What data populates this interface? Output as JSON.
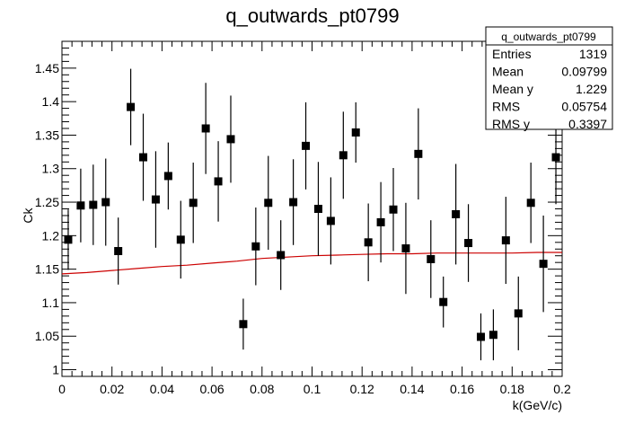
{
  "chart_data": {
    "type": "scatter",
    "title": "q_outwards_pt0799",
    "xlabel": "k(GeV/c)",
    "ylabel": "Ck",
    "xlim": [
      0,
      0.2
    ],
    "ylim": [
      0.99,
      1.49
    ],
    "x_ticks": [
      "0",
      "0.02",
      "0.04",
      "0.06",
      "0.08",
      "0.1",
      "0.12",
      "0.14",
      "0.16",
      "0.18",
      "0.2"
    ],
    "y_ticks": [
      "1",
      "1.05",
      "1.1",
      "1.15",
      "1.2",
      "1.25",
      "1.3",
      "1.35",
      "1.4",
      "1.45"
    ],
    "grid": false,
    "colors": {
      "points": "#000000",
      "fit": "#cc0000",
      "frame": "#000000"
    },
    "series": [
      {
        "type": "errorbar",
        "x": [
          0.0025,
          0.0075,
          0.0125,
          0.0175,
          0.0225,
          0.0275,
          0.0325,
          0.0375,
          0.0425,
          0.0475,
          0.0525,
          0.0575,
          0.0625,
          0.0675,
          0.0725,
          0.0775,
          0.0825,
          0.0875,
          0.0925,
          0.0975,
          0.1025,
          0.1075,
          0.1125,
          0.1175,
          0.1225,
          0.1275,
          0.1325,
          0.1375,
          0.1425,
          0.1475,
          0.1525,
          0.1575,
          0.1625,
          0.1675,
          0.1725,
          0.1775,
          0.1825,
          0.1875,
          0.1925,
          0.1975
        ],
        "y": [
          1.194,
          1.245,
          1.246,
          1.25,
          1.177,
          1.392,
          1.317,
          1.254,
          1.289,
          1.194,
          1.249,
          1.36,
          1.281,
          1.344,
          1.068,
          1.184,
          1.249,
          1.171,
          1.25,
          1.334,
          1.24,
          1.222,
          1.32,
          1.354,
          1.19,
          1.22,
          1.239,
          1.181,
          1.322,
          1.165,
          1.101,
          1.232,
          1.189,
          1.049,
          1.052,
          1.193,
          1.084,
          1.249,
          1.158,
          1.317
        ],
        "yerr": [
          0.045,
          0.055,
          0.06,
          0.065,
          0.05,
          0.057,
          0.065,
          0.072,
          0.05,
          0.058,
          0.06,
          0.068,
          0.06,
          0.065,
          0.038,
          0.058,
          0.07,
          0.052,
          0.064,
          0.065,
          0.07,
          0.065,
          0.065,
          0.045,
          0.058,
          0.06,
          0.062,
          0.068,
          0.068,
          0.058,
          0.038,
          0.075,
          0.058,
          0.035,
          0.038,
          0.065,
          0.055,
          0.06,
          0.072,
          0.07
        ]
      },
      {
        "type": "fit-line",
        "x": [
          0.0,
          0.01,
          0.02,
          0.03,
          0.04,
          0.05,
          0.06,
          0.07,
          0.08,
          0.09,
          0.1,
          0.11,
          0.12,
          0.13,
          0.14,
          0.15,
          0.16,
          0.17,
          0.18,
          0.19,
          0.2
        ],
        "y": [
          1.143,
          1.145,
          1.148,
          1.151,
          1.154,
          1.156,
          1.159,
          1.162,
          1.166,
          1.168,
          1.17,
          1.171,
          1.172,
          1.173,
          1.173,
          1.174,
          1.174,
          1.174,
          1.174,
          1.175,
          1.175
        ]
      }
    ]
  },
  "stats_box": {
    "title": "q_outwards_pt0799",
    "rows": [
      {
        "label": "Entries",
        "value": "1319"
      },
      {
        "label": "Mean",
        "value": "0.09799"
      },
      {
        "label": "Mean y",
        "value": "1.229"
      },
      {
        "label": "RMS",
        "value": "0.05754"
      },
      {
        "label": "RMS y",
        "value": "0.3397"
      }
    ]
  }
}
